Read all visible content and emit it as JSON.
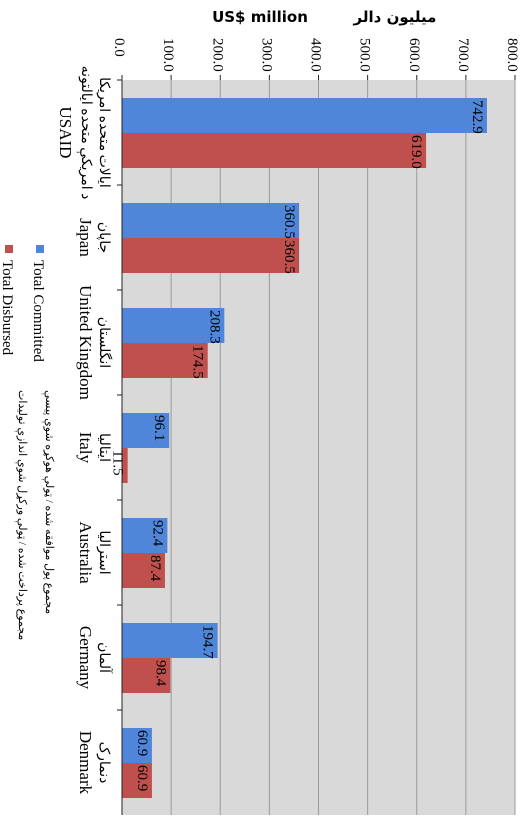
{
  "chart_data": {
    "type": "bar",
    "orientation": "horizontal",
    "page_rotation": "rotated 90 degrees clockwise",
    "title_en": "US$ million",
    "title_fa": "میلیون دالر",
    "xlim": [
      0,
      800
    ],
    "ticks": [
      "0.0",
      "100.0",
      "200.0",
      "300.0",
      "400.0",
      "500.0",
      "600.0",
      "700.0",
      "800.0"
    ],
    "grid": true,
    "categories": [
      {
        "en": "USAID",
        "fa": "ایالات متحده امریکا",
        "fa2": "د امریکې متحده ایالتونه"
      },
      {
        "en": "Japan",
        "fa": "جاپان",
        "fa2": ""
      },
      {
        "en": "United Kingdom",
        "fa": "انگلستان",
        "fa2": ""
      },
      {
        "en": "Italy",
        "fa": "ایتالیا",
        "fa2": ""
      },
      {
        "en": "Australia",
        "fa": "استرالیا",
        "fa2": ""
      },
      {
        "en": "Germany",
        "fa": "آلمان",
        "fa2": ""
      },
      {
        "en": "Denmark",
        "fa": "دنمارک",
        "fa2": ""
      }
    ],
    "series": [
      {
        "name": "Total Committed",
        "name_fa": "مجموع پول موافقه شده / ټولې هوکړه شوې پیسې",
        "color": "#4F86D9",
        "values": [
          742.9,
          360.5,
          208.3,
          96.1,
          92.4,
          194.7,
          60.9
        ],
        "labels": [
          "742.9",
          "360.5",
          "208.3",
          "96.1",
          "92.4",
          "194.7",
          "60.9"
        ]
      },
      {
        "name": "Total Disbursed",
        "name_fa": "مجموع پرداخت شده / ټولې ورکړل شوې اندازې تولیدات",
        "color": "#C0504D",
        "values": [
          619.0,
          360.5,
          174.5,
          11.5,
          87.4,
          98.4,
          60.9
        ],
        "labels": [
          "619.0",
          "360.5",
          "174.5",
          "11.5",
          "87.4",
          "98.4",
          "60.9"
        ]
      }
    ]
  }
}
